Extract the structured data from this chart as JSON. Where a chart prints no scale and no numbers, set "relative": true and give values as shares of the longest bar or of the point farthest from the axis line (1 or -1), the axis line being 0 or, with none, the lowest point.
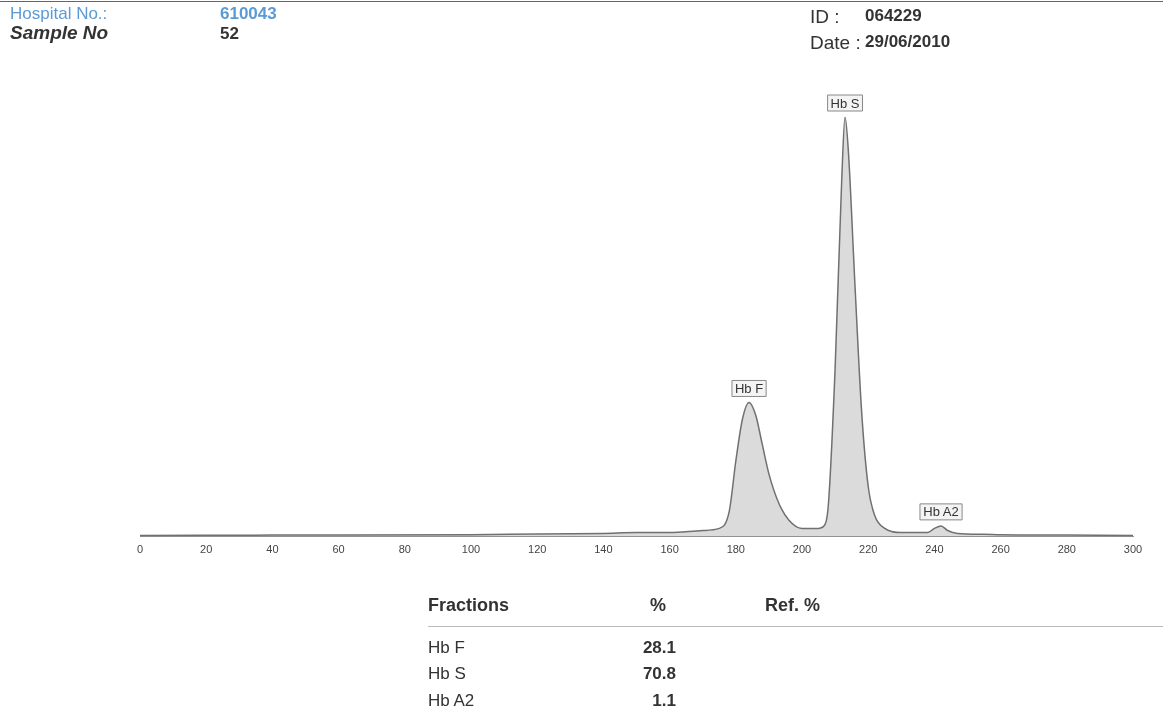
{
  "chart_data": {
    "type": "area",
    "relative": true,
    "xlim": [
      0,
      300
    ],
    "xticks": [
      0,
      20,
      40,
      60,
      80,
      100,
      120,
      140,
      160,
      180,
      200,
      220,
      240,
      260,
      280,
      300
    ],
    "grid": false,
    "legend": false,
    "marker": "none",
    "x": [
      0,
      40,
      100,
      140,
      150,
      160,
      170,
      175,
      178,
      180,
      182,
      184,
      186,
      188,
      190,
      193,
      196,
      200,
      205,
      207,
      208,
      210,
      212,
      213,
      214,
      216,
      218,
      220,
      222,
      225,
      230,
      238,
      240,
      242,
      244,
      247,
      255,
      260,
      280,
      300
    ],
    "series": [
      {
        "color": "#707070",
        "values": [
          0.003,
          0.004,
          0.005,
          0.008,
          0.01,
          0.01,
          0.015,
          0.02,
          0.06,
          0.18,
          0.28,
          0.32,
          0.29,
          0.22,
          0.15,
          0.08,
          0.04,
          0.02,
          0.02,
          0.03,
          0.08,
          0.4,
          0.85,
          1,
          0.92,
          0.6,
          0.3,
          0.12,
          0.05,
          0.02,
          0.01,
          0.01,
          0.02,
          0.026,
          0.015,
          0.008,
          0.006,
          0.005,
          0.004,
          0.003
        ]
      }
    ],
    "annotations": [
      "Hospital No.:",
      "610043",
      "Sample No",
      "52",
      "ID :",
      "064229",
      "Date :",
      "29/06/2010",
      "Fractions",
      "%",
      "Ref. %",
      "Hb F",
      "28.1",
      "Hb S",
      "70.8",
      "Hb A2",
      "1.1",
      {
        "text": "Hb F",
        "x": 184,
        "y": 0.32
      },
      {
        "text": "Hb S",
        "x": 213,
        "y": 1
      },
      {
        "text": "Hb A2",
        "x": 242,
        "y": 0.026
      }
    ]
  }
}
